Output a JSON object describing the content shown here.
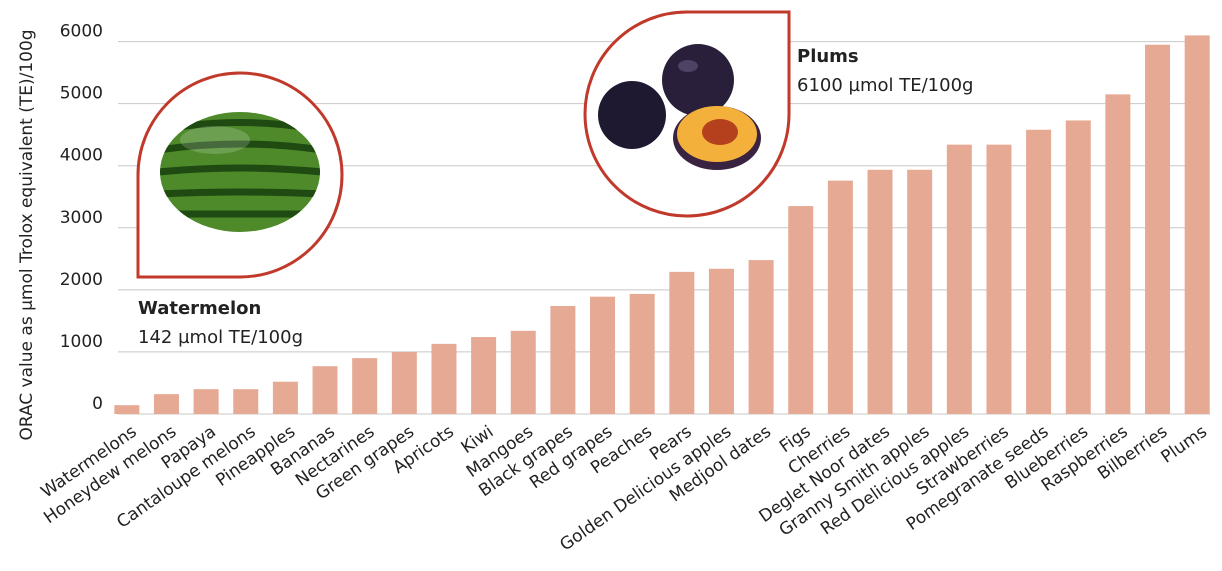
{
  "chart_data": {
    "type": "bar",
    "y_label": "ORAC value as µmol Trolox equivalent (TE)/100g",
    "categories": [
      "Watermelons",
      "Honeydew melons",
      "Papaya",
      "Cantaloupe melons",
      "Pineapples",
      "Bananas",
      "Nectarines",
      "Green grapes",
      "Apricots",
      "Kiwi",
      "Mangoes",
      "Black grapes",
      "Red grapes",
      "Peaches",
      "Pears",
      "Golden Delicious apples",
      "Medjool dates",
      "Figs",
      "Cherries",
      "Deglet Noor dates",
      "Granny Smith apples",
      "Red Delicious apples",
      "Strawberries",
      "Pomegranate seeds",
      "Blueberries",
      "Raspberries",
      "Bilberries",
      "Plums"
    ],
    "values": [
      142,
      320,
      400,
      400,
      520,
      770,
      900,
      1000,
      1130,
      1240,
      1340,
      1740,
      1890,
      1935,
      2290,
      2340,
      2480,
      3350,
      3760,
      3935,
      3935,
      4340,
      4340,
      4580,
      4730,
      5150,
      5950,
      6100
    ],
    "color": "#e6a994",
    "ylim": [
      0,
      6300
    ],
    "yticks": [
      0,
      1000,
      2000,
      3000,
      4000,
      5000,
      6000
    ],
    "grid": true,
    "annotations": [
      {
        "title": "Watermelon",
        "text": "142  µmol TE/100g"
      },
      {
        "title": "Plums",
        "text": "6100 µmol TE/100g"
      }
    ]
  }
}
